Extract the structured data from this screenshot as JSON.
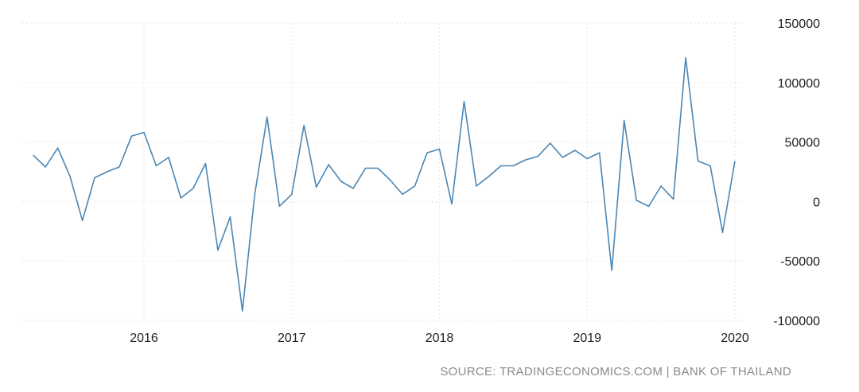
{
  "chart_data": {
    "type": "line",
    "color": "#4b86b4",
    "ylim": [
      -100000,
      150000
    ],
    "y_ticks": [
      150000,
      100000,
      50000,
      0,
      -50000,
      -100000
    ],
    "y_tick_labels": [
      "150000",
      "100000",
      "50000",
      "0",
      "-50000",
      "-100000"
    ],
    "x_tick_labels": [
      "2016",
      "2017",
      "2018",
      "2019",
      "2020"
    ],
    "grid": true,
    "series": [
      {
        "x": [
          "2015-04",
          "2015-05",
          "2015-06",
          "2015-07",
          "2015-08",
          "2015-09",
          "2015-10",
          "2015-11",
          "2015-12",
          "2016-01",
          "2016-02",
          "2016-03",
          "2016-04",
          "2016-05",
          "2016-06",
          "2016-07",
          "2016-08",
          "2016-09",
          "2016-10",
          "2016-11",
          "2016-12",
          "2017-01",
          "2017-02",
          "2017-03",
          "2017-04",
          "2017-05",
          "2017-06",
          "2017-07",
          "2017-08",
          "2017-09",
          "2017-10",
          "2017-11",
          "2017-12",
          "2018-01",
          "2018-02",
          "2018-03",
          "2018-04",
          "2018-05",
          "2018-06",
          "2018-07",
          "2018-08",
          "2018-09",
          "2018-10",
          "2018-11",
          "2018-12",
          "2019-01",
          "2019-02",
          "2019-03",
          "2019-04",
          "2019-05",
          "2019-06",
          "2019-07",
          "2019-08",
          "2019-09",
          "2019-10",
          "2019-11",
          "2019-12",
          "2020-01"
        ],
        "values": [
          39000,
          29000,
          45000,
          21000,
          -16000,
          20000,
          25000,
          29000,
          55000,
          58000,
          30000,
          37000,
          3000,
          11000,
          32000,
          -41000,
          -13000,
          -92000,
          6000,
          71000,
          -4000,
          6000,
          64000,
          12000,
          31000,
          17000,
          11000,
          28000,
          28000,
          18000,
          6000,
          13000,
          41000,
          44000,
          -2000,
          84000,
          13000,
          21000,
          30000,
          30000,
          35000,
          38000,
          49000,
          37000,
          43000,
          36000,
          41000,
          -58000,
          68000,
          1000,
          -4000,
          13000,
          2000,
          121000,
          34000,
          30000,
          -26000,
          34000
        ]
      }
    ]
  },
  "footer": {
    "source": "SOURCE: TRADINGECONOMICS.COM | BANK OF THAILAND"
  }
}
